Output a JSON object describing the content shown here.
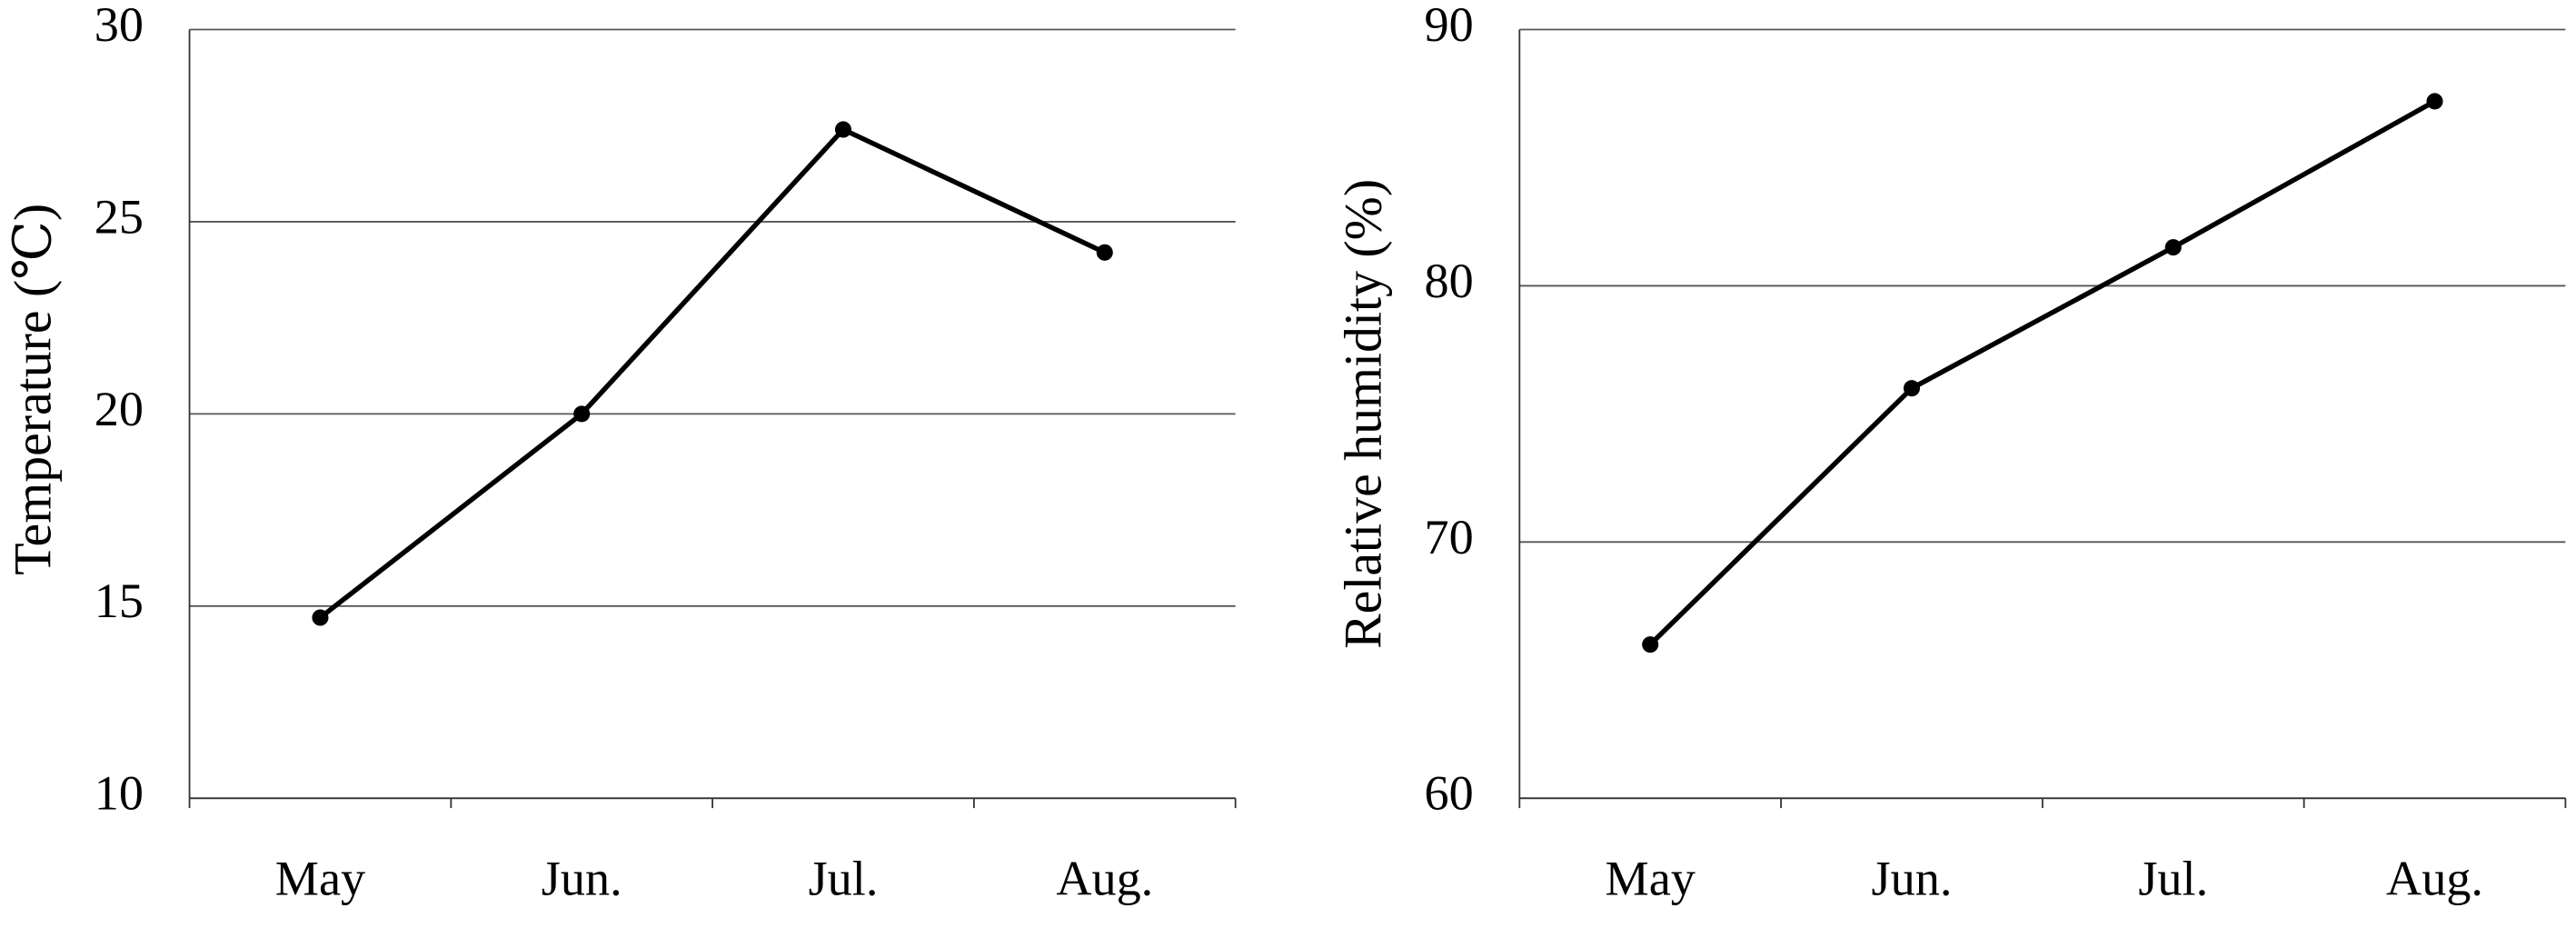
{
  "chart_data": [
    {
      "type": "line",
      "y_label": "Temperature (℃)",
      "categories": [
        "May",
        "Jun.",
        "Jul.",
        "Aug."
      ],
      "series": [
        {
          "name": "Temperature",
          "color": "#000000",
          "values": [
            14.7,
            20.0,
            27.4,
            24.2
          ]
        }
      ],
      "ylim": [
        10,
        30
      ],
      "yticks": [
        10,
        15,
        20,
        25,
        30
      ],
      "grid": true
    },
    {
      "type": "line",
      "y_label": "Relative humidity (%)",
      "categories": [
        "May",
        "Jun.",
        "Jul.",
        "Aug."
      ],
      "series": [
        {
          "name": "Relative humidity",
          "color": "#000000",
          "values": [
            66.0,
            76.0,
            81.5,
            87.2
          ]
        }
      ],
      "ylim": [
        60,
        90
      ],
      "yticks": [
        60,
        70,
        80,
        90
      ],
      "grid": true
    }
  ]
}
